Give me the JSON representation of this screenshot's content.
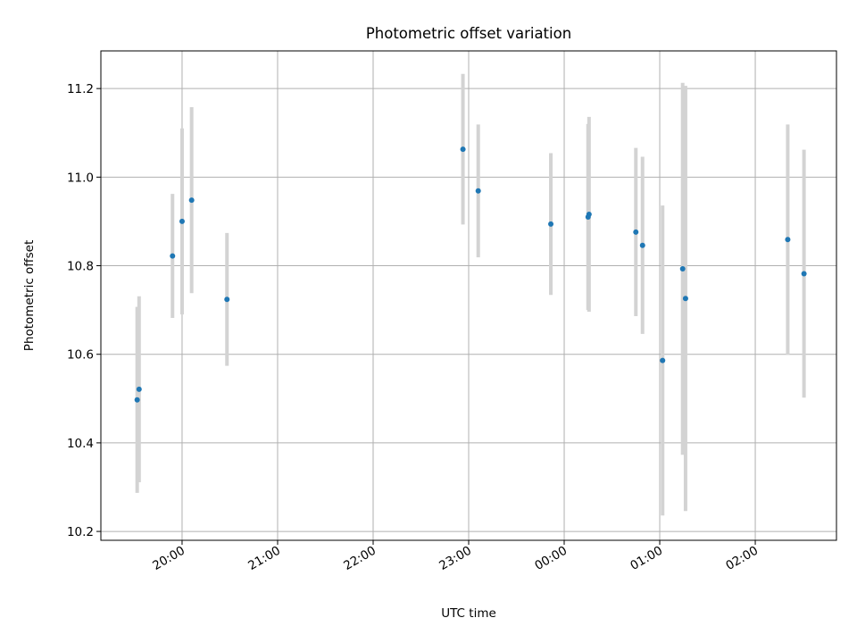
{
  "chart_data": {
    "type": "scatter",
    "title": "Photometric offset variation",
    "xlabel": "UTC time",
    "ylabel": "Photometric offset",
    "x_ticks": [
      "20:00",
      "21:00",
      "22:00",
      "23:00",
      "00:00",
      "01:00",
      "02:00"
    ],
    "x_tick_hours": [
      20,
      21,
      22,
      23,
      24,
      25,
      26
    ],
    "xlim_hours": [
      19.15,
      26.85
    ],
    "y_ticks": [
      "10.2",
      "10.4",
      "10.6",
      "10.8",
      "11.0",
      "11.2"
    ],
    "y_tick_values": [
      10.2,
      10.4,
      10.6,
      10.8,
      11.0,
      11.2
    ],
    "ylim": [
      10.18,
      11.285
    ],
    "grid": true,
    "colors": {
      "point": "#1f77b4",
      "errorbar": "#d3d3d3"
    },
    "points": [
      {
        "t": "19:32",
        "hour": 19.53,
        "y": 10.497,
        "err": 0.21
      },
      {
        "t": "19:33",
        "hour": 19.55,
        "y": 10.521,
        "err": 0.21
      },
      {
        "t": "19:54",
        "hour": 19.9,
        "y": 10.822,
        "err": 0.14
      },
      {
        "t": "20:00",
        "hour": 20.0,
        "y": 10.9,
        "err": 0.21
      },
      {
        "t": "20:06",
        "hour": 20.1,
        "y": 10.948,
        "err": 0.21
      },
      {
        "t": "20:28",
        "hour": 20.47,
        "y": 10.724,
        "err": 0.15
      },
      {
        "t": "22:56",
        "hour": 22.94,
        "y": 11.063,
        "err": 0.17
      },
      {
        "t": "23:06",
        "hour": 23.1,
        "y": 10.969,
        "err": 0.15
      },
      {
        "t": "23:52",
        "hour": 23.86,
        "y": 10.894,
        "err": 0.16
      },
      {
        "t": "00:15",
        "hour": 24.25,
        "y": 10.91,
        "err": 0.21
      },
      {
        "t": "00:16",
        "hour": 24.26,
        "y": 10.916,
        "err": 0.22
      },
      {
        "t": "00:45",
        "hour": 24.75,
        "y": 10.876,
        "err": 0.19
      },
      {
        "t": "00:49",
        "hour": 24.82,
        "y": 10.846,
        "err": 0.2
      },
      {
        "t": "01:02",
        "hour": 25.03,
        "y": 10.586,
        "err": 0.35
      },
      {
        "t": "01:14",
        "hour": 25.24,
        "y": 10.793,
        "err": 0.42
      },
      {
        "t": "01:16",
        "hour": 25.27,
        "y": 10.726,
        "err": 0.48
      },
      {
        "t": "02:20",
        "hour": 26.34,
        "y": 10.859,
        "err": 0.26
      },
      {
        "t": "02:31",
        "hour": 26.51,
        "y": 10.782,
        "err": 0.28
      }
    ]
  }
}
